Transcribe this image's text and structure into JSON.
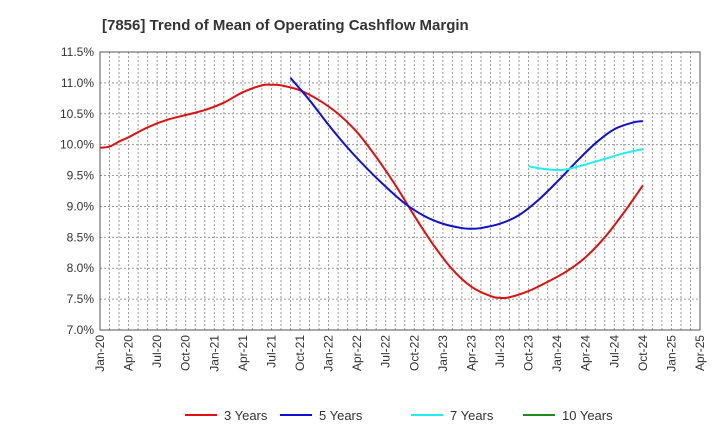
{
  "chart_data": {
    "type": "line",
    "title": "[7856]  Trend of Mean of Operating Cashflow Margin",
    "xlabel": "",
    "ylabel": "",
    "ylim": [
      7.0,
      11.5
    ],
    "ytick_values": [
      7.0,
      7.5,
      8.0,
      8.5,
      9.0,
      9.5,
      10.0,
      10.5,
      11.0,
      11.5
    ],
    "ytick_labels": [
      "7.0%",
      "7.5%",
      "8.0%",
      "8.5%",
      "9.0%",
      "9.5%",
      "10.0%",
      "10.5%",
      "11.0%",
      "11.5%"
    ],
    "xtick_labels": [
      "Jan-20",
      "Apr-20",
      "Jul-20",
      "Oct-20",
      "Jan-21",
      "Apr-21",
      "Jul-21",
      "Oct-21",
      "Jan-22",
      "Apr-22",
      "Jul-22",
      "Oct-22",
      "Jan-23",
      "Apr-23",
      "Jul-23",
      "Oct-23",
      "Jan-24",
      "Apr-24",
      "Jul-24",
      "Oct-24",
      "Jan-25",
      "Apr-25"
    ],
    "x_range": [
      "Jan-20",
      "Apr-25"
    ],
    "grid": true,
    "legend_position": "bottom",
    "series": [
      {
        "name": "3 Years",
        "color": "#dd1111",
        "points": [
          [
            "Jan-20",
            9.95
          ],
          [
            "Feb-20",
            9.97
          ],
          [
            "Mar-20",
            10.05
          ],
          [
            "Apr-20",
            10.12
          ],
          [
            "Jun-20",
            10.28
          ],
          [
            "Aug-20",
            10.4
          ],
          [
            "Oct-20",
            10.48
          ],
          [
            "Dec-20",
            10.56
          ],
          [
            "Feb-21",
            10.68
          ],
          [
            "Apr-21",
            10.85
          ],
          [
            "Jun-21",
            10.96
          ],
          [
            "Jul-21",
            10.97
          ],
          [
            "Aug-21",
            10.96
          ],
          [
            "Oct-21",
            10.88
          ],
          [
            "Dec-21",
            10.72
          ],
          [
            "Feb-22",
            10.5
          ],
          [
            "Apr-22",
            10.2
          ],
          [
            "Jun-22",
            9.8
          ],
          [
            "Aug-22",
            9.35
          ],
          [
            "Oct-22",
            8.85
          ],
          [
            "Dec-22",
            8.38
          ],
          [
            "Feb-23",
            7.98
          ],
          [
            "Apr-23",
            7.7
          ],
          [
            "Jun-23",
            7.55
          ],
          [
            "Jul-23",
            7.52
          ],
          [
            "Aug-23",
            7.53
          ],
          [
            "Oct-23",
            7.63
          ],
          [
            "Dec-23",
            7.78
          ],
          [
            "Feb-24",
            7.95
          ],
          [
            "Apr-24",
            8.18
          ],
          [
            "Jun-24",
            8.5
          ],
          [
            "Aug-24",
            8.9
          ],
          [
            "Oct-24",
            9.34
          ]
        ]
      },
      {
        "name": "5 Years",
        "color": "#1111cc",
        "points": [
          [
            "Sep-21",
            11.08
          ],
          [
            "Nov-21",
            10.72
          ],
          [
            "Jan-22",
            10.32
          ],
          [
            "Mar-22",
            9.95
          ],
          [
            "May-22",
            9.62
          ],
          [
            "Jul-22",
            9.32
          ],
          [
            "Sep-22",
            9.05
          ],
          [
            "Nov-22",
            8.85
          ],
          [
            "Jan-23",
            8.72
          ],
          [
            "Mar-23",
            8.65
          ],
          [
            "Apr-23",
            8.64
          ],
          [
            "May-23",
            8.65
          ],
          [
            "Jul-23",
            8.72
          ],
          [
            "Sep-23",
            8.86
          ],
          [
            "Nov-23",
            9.1
          ],
          [
            "Jan-24",
            9.4
          ],
          [
            "Mar-24",
            9.72
          ],
          [
            "May-24",
            10.02
          ],
          [
            "Jul-24",
            10.25
          ],
          [
            "Sep-24",
            10.36
          ],
          [
            "Oct-24",
            10.38
          ]
        ]
      },
      {
        "name": "7 Years",
        "color": "#22eeee",
        "points": [
          [
            "Oct-23",
            9.65
          ],
          [
            "Nov-23",
            9.62
          ],
          [
            "Dec-23",
            9.6
          ],
          [
            "Jan-24",
            9.59
          ],
          [
            "Feb-24",
            9.6
          ],
          [
            "Apr-24",
            9.68
          ],
          [
            "Jun-24",
            9.77
          ],
          [
            "Aug-24",
            9.86
          ],
          [
            "Oct-24",
            9.93
          ]
        ]
      },
      {
        "name": "10 Years",
        "color": "#228822",
        "points": []
      }
    ]
  }
}
